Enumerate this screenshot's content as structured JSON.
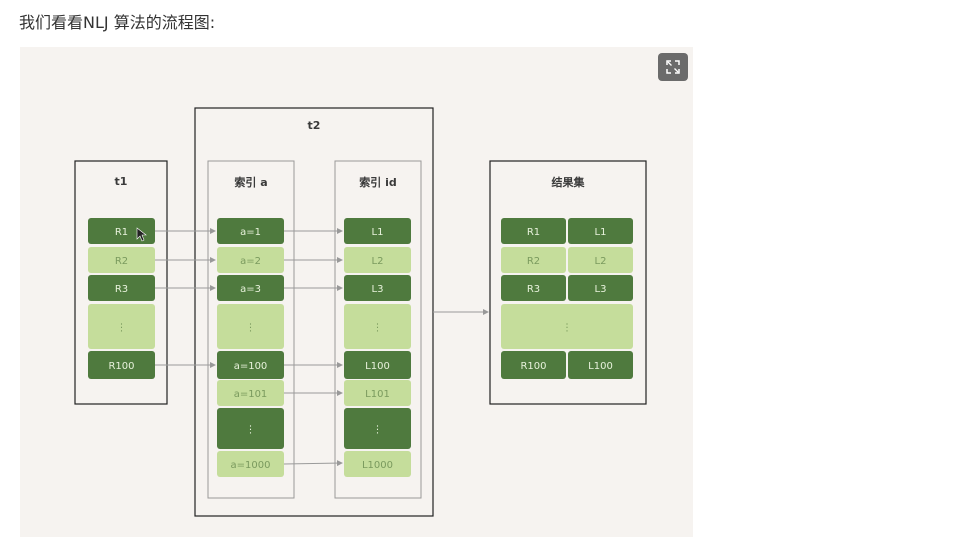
{
  "heading": "我们看看NLJ 算法的流程图:",
  "expand_icon": "expand-icon",
  "diagram": {
    "t2_title": "t2",
    "t1_title": "t1",
    "index_a_title": "索引 a",
    "index_id_title": "索引 id",
    "result_title": "结果集",
    "ellipsis": "⋮",
    "colors": {
      "dark": "#4f7a3e",
      "light": "#c5dd9b",
      "box": "#222222",
      "inner_box": "#999999"
    },
    "t1_cells": [
      {
        "label": "R1",
        "tone": "dark"
      },
      {
        "label": "R2",
        "tone": "light"
      },
      {
        "label": "R3",
        "tone": "dark"
      },
      {
        "label": "",
        "tone": "light",
        "ellipsis": true
      },
      {
        "label": "R100",
        "tone": "dark"
      }
    ],
    "index_a_cells": [
      {
        "label": "a=1",
        "tone": "dark"
      },
      {
        "label": "a=2",
        "tone": "light"
      },
      {
        "label": "a=3",
        "tone": "dark"
      },
      {
        "label": "",
        "tone": "light",
        "ellipsis": true
      },
      {
        "label": "a=100",
        "tone": "dark"
      },
      {
        "label": "a=101",
        "tone": "light"
      },
      {
        "label": "",
        "tone": "dark",
        "ellipsis": true
      },
      {
        "label": "a=1000",
        "tone": "light"
      }
    ],
    "index_id_cells": [
      {
        "label": "L1",
        "tone": "dark"
      },
      {
        "label": "L2",
        "tone": "light"
      },
      {
        "label": "L3",
        "tone": "dark"
      },
      {
        "label": "",
        "tone": "light",
        "ellipsis": true
      },
      {
        "label": "L100",
        "tone": "dark"
      },
      {
        "label": "L101",
        "tone": "light"
      },
      {
        "label": "",
        "tone": "dark",
        "ellipsis": true
      },
      {
        "label": "L1000",
        "tone": "light"
      }
    ],
    "result_rows": [
      {
        "left": "R1",
        "right": "L1",
        "tone": "dark"
      },
      {
        "left": "R2",
        "right": "L2",
        "tone": "light"
      },
      {
        "left": "R3",
        "right": "L3",
        "tone": "dark"
      },
      {
        "left": "",
        "right": "",
        "tone": "light",
        "ellipsis": true
      },
      {
        "left": "R100",
        "right": "L100",
        "tone": "dark"
      }
    ]
  }
}
